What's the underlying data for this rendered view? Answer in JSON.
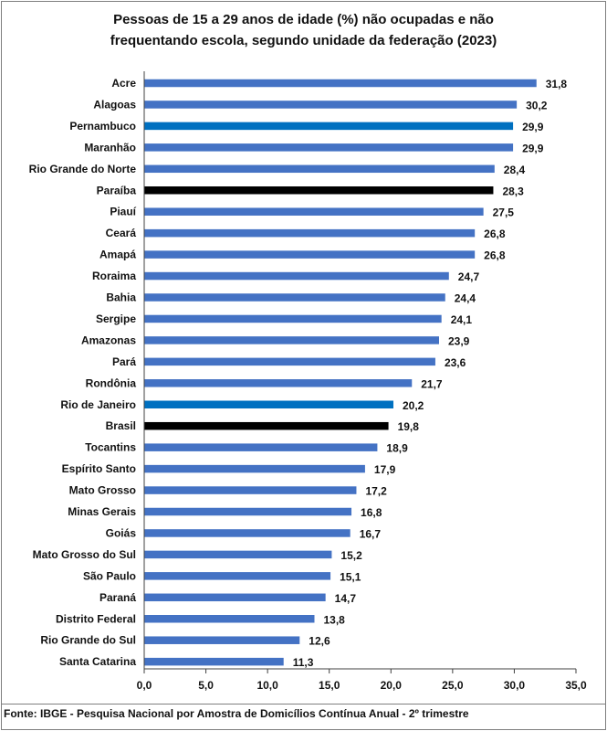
{
  "title_lines": [
    "Pessoas de 15 a 29 anos de idade (%) não ocupadas e não",
    "frequentando escola, segundo unidade da federação (2023)"
  ],
  "source": "Fonte: IBGE - Pesquisa Nacional por Amostra de Domicílios Contínua Anual - 2º trimestre",
  "colors": {
    "default": "#4472C4",
    "highlight_blue": "#0070C0",
    "highlight_black": "#000000",
    "grid": "#d9d9d9",
    "axis": "#404040"
  },
  "chart_data": {
    "type": "bar",
    "orientation": "horizontal",
    "title": "Pessoas de 15 a 29 anos de idade (%) não ocupadas e não frequentando escola, segundo unidade da federação (2023)",
    "categories": [
      "Acre",
      "Alagoas",
      "Pernambuco",
      "Maranhão",
      "Rio Grande do Norte",
      "Paraíba",
      "Piauí",
      "Ceará",
      "Amapá",
      "Roraima",
      "Bahia",
      "Sergipe",
      "Amazonas",
      "Pará",
      "Rondônia",
      "Rio de Janeiro",
      "Brasil",
      "Tocantins",
      "Espírito Santo",
      "Mato Grosso",
      "Minas Gerais",
      "Goiás",
      "Mato Grosso do Sul",
      "São Paulo",
      "Paraná",
      "Distrito Federal",
      "Rio Grande do Sul",
      "Santa Catarina"
    ],
    "values": [
      31.8,
      30.2,
      29.9,
      29.9,
      28.4,
      28.3,
      27.5,
      26.8,
      26.8,
      24.7,
      24.4,
      24.1,
      23.9,
      23.6,
      21.7,
      20.2,
      19.8,
      18.9,
      17.9,
      17.2,
      16.8,
      16.7,
      15.2,
      15.1,
      14.7,
      13.8,
      12.6,
      11.3
    ],
    "value_labels": [
      "31,8",
      "30,2",
      "29,9",
      "29,9",
      "28,4",
      "28,3",
      "27,5",
      "26,8",
      "26,8",
      "24,7",
      "24,4",
      "24,1",
      "23,9",
      "23,6",
      "21,7",
      "20,2",
      "19,8",
      "18,9",
      "17,9",
      "17,2",
      "16,8",
      "16,7",
      "15,2",
      "15,1",
      "14,7",
      "13,8",
      "12,6",
      "11,3"
    ],
    "bar_colors": [
      "#4472C4",
      "#4472C4",
      "#0070C0",
      "#4472C4",
      "#4472C4",
      "#000000",
      "#4472C4",
      "#4472C4",
      "#4472C4",
      "#4472C4",
      "#4472C4",
      "#4472C4",
      "#4472C4",
      "#4472C4",
      "#4472C4",
      "#0070C0",
      "#000000",
      "#4472C4",
      "#4472C4",
      "#4472C4",
      "#4472C4",
      "#4472C4",
      "#4472C4",
      "#4472C4",
      "#4472C4",
      "#4472C4",
      "#4472C4",
      "#4472C4"
    ],
    "xlim": [
      0,
      35
    ],
    "xticks": [
      0,
      5,
      10,
      15,
      20,
      25,
      30,
      35
    ],
    "xtick_labels": [
      "0,0",
      "5,0",
      "10,0",
      "15,0",
      "20,0",
      "25,0",
      "30,0",
      "35,0"
    ],
    "xlabel": "",
    "ylabel": "",
    "grid": false,
    "legend": "none"
  }
}
